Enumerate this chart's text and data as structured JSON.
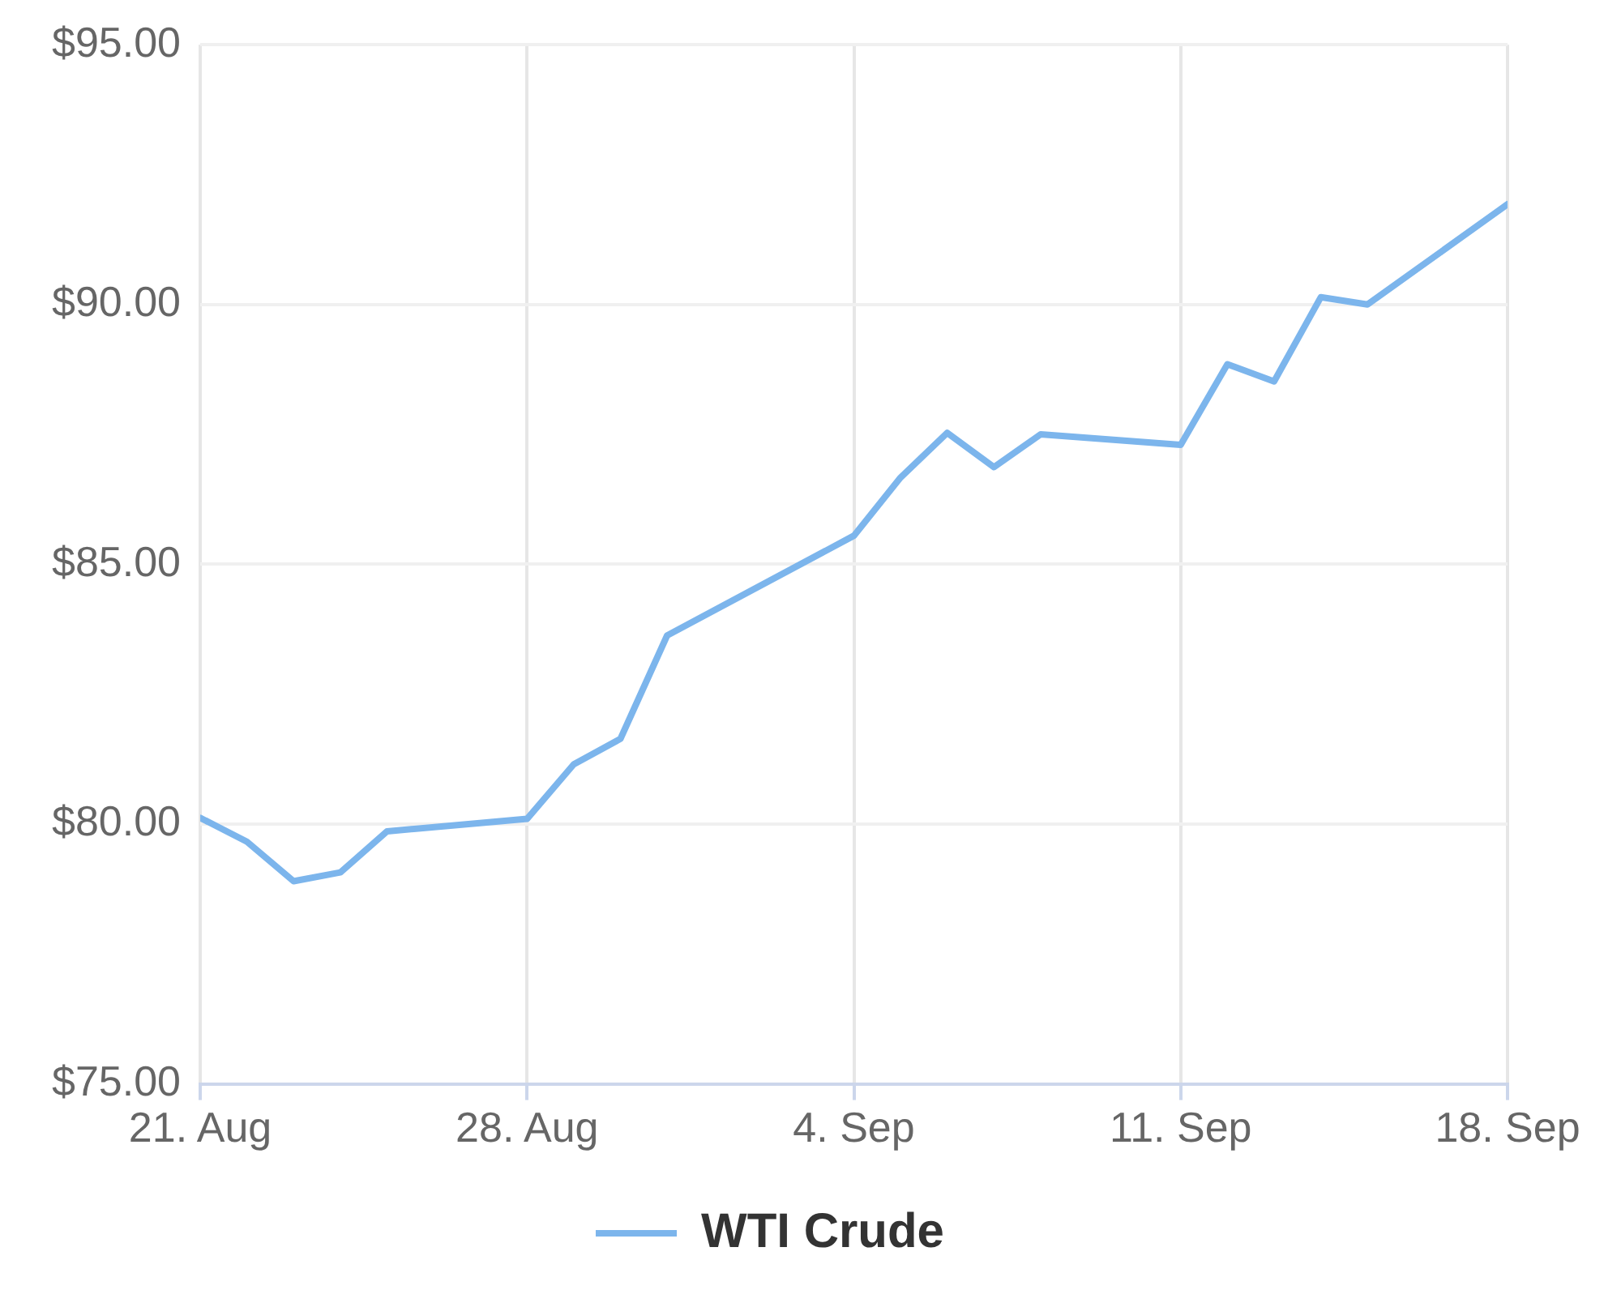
{
  "chart_data": {
    "type": "line",
    "x": [
      "--08-21",
      "--08-22",
      "--08-23",
      "--08-24",
      "--08-25",
      "--08-28",
      "--08-29",
      "--08-30",
      "--08-31",
      "--09-04",
      "--09-05",
      "--09-06",
      "--09-07",
      "--09-08",
      "--09-11",
      "--09-12",
      "--09-13",
      "--09-14",
      "--09-15",
      "--09-18"
    ],
    "series": [
      {
        "name": "WTI Crude",
        "color": "#7cb5ec",
        "values": [
          80.12,
          79.66,
          78.9,
          79.07,
          79.86,
          80.1,
          81.15,
          81.64,
          83.63,
          85.55,
          86.67,
          87.53,
          86.87,
          87.5,
          87.3,
          88.85,
          88.52,
          90.14,
          90.0,
          91.93
        ]
      }
    ],
    "xlim": [
      "--08-21",
      "--09-18"
    ],
    "xticks": [
      {
        "value": "--08-21",
        "label": "21. Aug"
      },
      {
        "value": "--08-28",
        "label": "28. Aug"
      },
      {
        "value": "--09-04",
        "label": "4. Sep"
      },
      {
        "value": "--09-11",
        "label": "11. Sep"
      },
      {
        "value": "--09-18",
        "label": "18. Sep"
      }
    ],
    "ylim": [
      75,
      95
    ],
    "yticks": [
      {
        "value": 75,
        "label": "$75.00"
      },
      {
        "value": 80,
        "label": "$80.00"
      },
      {
        "value": 85,
        "label": "$85.00"
      },
      {
        "value": 90,
        "label": "$90.00"
      },
      {
        "value": 95,
        "label": "$95.00"
      }
    ],
    "grid": true,
    "legend": "bottom",
    "marker": "none",
    "line_style": "solid"
  }
}
